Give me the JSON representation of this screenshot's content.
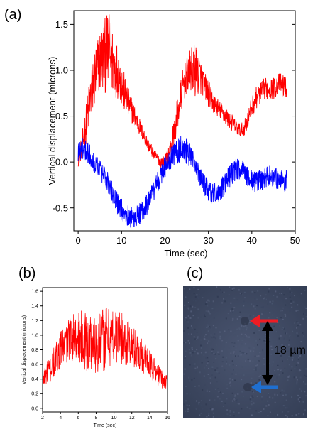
{
  "panels": {
    "a": {
      "label": "(a)"
    },
    "b": {
      "label": "(b)"
    },
    "c": {
      "label": "(c)",
      "scale_text": "18 µm"
    }
  },
  "colors": {
    "red": "#ff0000",
    "blue": "#0000ff",
    "arrow_red": "#ee1c24",
    "arrow_blue": "#1f6fd0",
    "photo_bg": "#3d4860"
  },
  "icons": {
    "top_marker": "red-left-arrow-icon",
    "bottom_marker": "blue-left-arrow-icon",
    "scale": "double-headed-arrow-icon"
  },
  "chart_data": [
    {
      "id": "a",
      "type": "line",
      "title": "",
      "xlabel": "Time (sec)",
      "ylabel": "Vertical displacement (microns)",
      "xlim": [
        -1,
        50
      ],
      "ylim": [
        -0.75,
        1.65
      ],
      "xticks": [
        0,
        10,
        20,
        30,
        40,
        50
      ],
      "yticks": [
        -0.5,
        0.0,
        0.5,
        1.0,
        1.5
      ],
      "xtick_labels": [
        "0",
        "10",
        "20",
        "30",
        "40",
        "50"
      ],
      "ytick_labels": [
        "-0.5",
        "0.0",
        "0.5",
        "1.0",
        "1.5"
      ],
      "grid": false,
      "series": [
        {
          "color": "#ff0000",
          "x": [
            0,
            1,
            2,
            3,
            4,
            5,
            6,
            7,
            8,
            9,
            10,
            11,
            12,
            13,
            14,
            15,
            16,
            17,
            18,
            19,
            20,
            21,
            22,
            23,
            24,
            25,
            26,
            27,
            28,
            29,
            30,
            31,
            32,
            33,
            34,
            35,
            36,
            37,
            38,
            39,
            40,
            41,
            42,
            43,
            44,
            45,
            46,
            47,
            48
          ],
          "mean": [
            0.0,
            0.2,
            0.45,
            0.75,
            0.95,
            1.1,
            1.15,
            1.2,
            1.1,
            1.0,
            0.85,
            0.7,
            0.6,
            0.5,
            0.4,
            0.3,
            0.2,
            0.12,
            0.05,
            0.0,
            0.0,
            0.1,
            0.3,
            0.55,
            0.8,
            0.95,
            1.0,
            1.0,
            0.95,
            0.85,
            0.75,
            0.65,
            0.6,
            0.55,
            0.5,
            0.45,
            0.4,
            0.35,
            0.35,
            0.45,
            0.6,
            0.7,
            0.75,
            0.8,
            0.8,
            0.8,
            0.85,
            0.85,
            0.8
          ],
          "amp": [
            0.05,
            0.15,
            0.25,
            0.3,
            0.35,
            0.35,
            0.4,
            0.45,
            0.4,
            0.3,
            0.25,
            0.2,
            0.15,
            0.12,
            0.1,
            0.08,
            0.08,
            0.07,
            0.06,
            0.06,
            0.07,
            0.1,
            0.15,
            0.2,
            0.2,
            0.2,
            0.25,
            0.3,
            0.2,
            0.15,
            0.15,
            0.12,
            0.1,
            0.1,
            0.1,
            0.1,
            0.08,
            0.08,
            0.08,
            0.1,
            0.12,
            0.12,
            0.12,
            0.12,
            0.12,
            0.12,
            0.12,
            0.12,
            0.12
          ]
        },
        {
          "color": "#0000ff",
          "x": [
            0,
            1,
            2,
            3,
            4,
            5,
            6,
            7,
            8,
            9,
            10,
            11,
            12,
            13,
            14,
            15,
            16,
            17,
            18,
            19,
            20,
            21,
            22,
            23,
            24,
            25,
            26,
            27,
            28,
            29,
            30,
            31,
            32,
            33,
            34,
            35,
            36,
            37,
            38,
            39,
            40,
            41,
            42,
            43,
            44,
            45,
            46,
            47,
            48
          ],
          "mean": [
            0.1,
            0.15,
            0.12,
            0.05,
            -0.02,
            -0.08,
            -0.15,
            -0.25,
            -0.35,
            -0.45,
            -0.52,
            -0.57,
            -0.6,
            -0.6,
            -0.58,
            -0.52,
            -0.45,
            -0.35,
            -0.25,
            -0.15,
            -0.05,
            0.02,
            0.08,
            0.12,
            0.15,
            0.12,
            0.05,
            -0.05,
            -0.15,
            -0.25,
            -0.32,
            -0.35,
            -0.35,
            -0.3,
            -0.22,
            -0.15,
            -0.1,
            -0.08,
            -0.1,
            -0.15,
            -0.2,
            -0.22,
            -0.2,
            -0.18,
            -0.15,
            -0.15,
            -0.18,
            -0.2,
            -0.2
          ],
          "amp": [
            0.1,
            0.12,
            0.12,
            0.12,
            0.12,
            0.12,
            0.12,
            0.12,
            0.12,
            0.12,
            0.12,
            0.12,
            0.12,
            0.12,
            0.12,
            0.12,
            0.12,
            0.12,
            0.12,
            0.12,
            0.12,
            0.12,
            0.12,
            0.15,
            0.15,
            0.15,
            0.12,
            0.12,
            0.12,
            0.12,
            0.12,
            0.12,
            0.12,
            0.12,
            0.12,
            0.12,
            0.12,
            0.12,
            0.12,
            0.12,
            0.12,
            0.12,
            0.12,
            0.12,
            0.12,
            0.12,
            0.12,
            0.12,
            0.12
          ]
        }
      ]
    },
    {
      "id": "b",
      "type": "line",
      "title": "",
      "xlabel": "Time (sec)",
      "ylabel": "Vertical displacement (microns)",
      "xlim": [
        2,
        16
      ],
      "ylim": [
        -0.05,
        1.65
      ],
      "xticks": [
        2,
        4,
        6,
        8,
        10,
        12,
        14,
        16
      ],
      "yticks": [
        0.0,
        0.2,
        0.4,
        0.6,
        0.8,
        1.0,
        1.2,
        1.4,
        1.6
      ],
      "xtick_labels": [
        "2",
        "4",
        "6",
        "8",
        "10",
        "12",
        "14",
        "16"
      ],
      "ytick_labels": [
        "0.0",
        "0.2",
        "0.4",
        "0.6",
        "0.8",
        "1.0",
        "1.2",
        "1.4",
        "1.6"
      ],
      "grid": false,
      "series": [
        {
          "color": "#ff0000",
          "x": [
            2,
            3,
            4,
            5,
            6,
            7,
            8,
            9,
            10,
            11,
            12,
            13,
            14,
            15,
            16
          ],
          "mean": [
            0.4,
            0.55,
            0.8,
            0.95,
            1.0,
            0.9,
            0.9,
            0.95,
            1.0,
            0.95,
            0.85,
            0.75,
            0.6,
            0.45,
            0.35
          ],
          "amp": [
            0.15,
            0.2,
            0.25,
            0.3,
            0.35,
            0.45,
            0.45,
            0.45,
            0.4,
            0.35,
            0.3,
            0.25,
            0.2,
            0.15,
            0.12
          ]
        }
      ]
    }
  ]
}
